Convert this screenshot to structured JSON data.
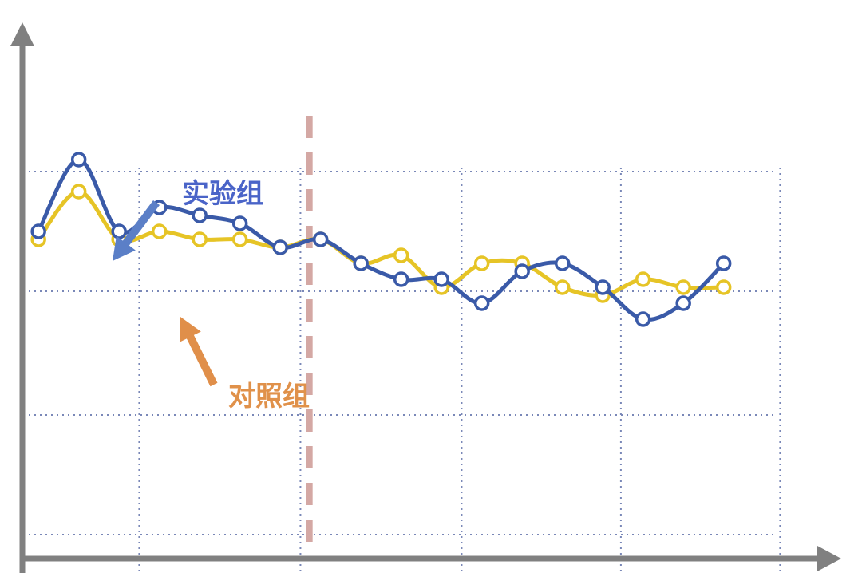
{
  "chart_data": {
    "type": "line",
    "title": "",
    "xlabel": "",
    "ylabel": "",
    "x": [
      1,
      2,
      3,
      4,
      5,
      6,
      7,
      8,
      9,
      10,
      11,
      12,
      13,
      14,
      15,
      16,
      17,
      18
    ],
    "xlim": [
      0.64,
      20.4
    ],
    "ylim": [
      0,
      6.1
    ],
    "grid": true,
    "intervention_x": 8,
    "series": [
      {
        "name": "实验组",
        "color": "#3a5aa8",
        "values": [
          4.1,
          5.0,
          4.1,
          4.4,
          4.3,
          4.2,
          3.9,
          4.0,
          3.7,
          3.5,
          3.5,
          3.2,
          3.6,
          3.7,
          3.4,
          3.0,
          3.2,
          3.7
        ]
      },
      {
        "name": "对照组",
        "color": "#e6c426",
        "values": [
          4.0,
          4.6,
          4.0,
          4.1,
          4.0,
          4.0,
          3.9,
          4.0,
          3.7,
          3.8,
          3.4,
          3.7,
          3.7,
          3.4,
          3.3,
          3.5,
          3.4,
          3.4
        ]
      }
    ],
    "annotations": [
      {
        "text": "实验组",
        "color": "#4a64c8",
        "target_series": 0,
        "target_x": 2
      },
      {
        "text": "对照组",
        "color": "#e0914a",
        "target_series": 1,
        "target_x": 4
      }
    ]
  },
  "colors": {
    "axis": "#808080",
    "grid": "#7a88b8",
    "intervention_line": "#d4a8a4",
    "marker_fill": "#ffffff",
    "arrow_blue": "#5b7fc7",
    "arrow_orange": "#e08f4a"
  }
}
